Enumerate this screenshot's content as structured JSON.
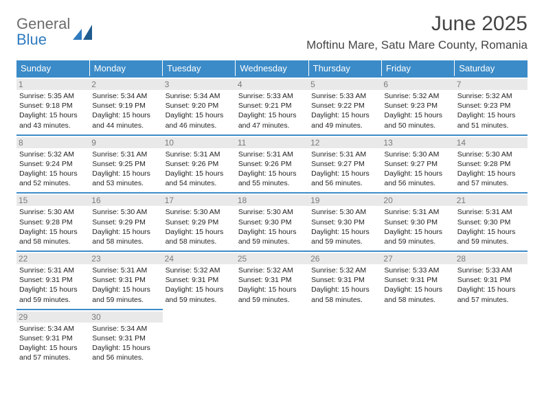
{
  "logo": {
    "line1": "General",
    "line2": "Blue"
  },
  "title": "June 2025",
  "location": "Moftinu Mare, Satu Mare County, Romania",
  "colors": {
    "header_bg": "#3b8bc8",
    "header_text": "#ffffff",
    "daynum_bg": "#e9e9e9",
    "daynum_text": "#7a7a7a",
    "body_text": "#222222",
    "divider": "#3b8bc8"
  },
  "dow": [
    "Sunday",
    "Monday",
    "Tuesday",
    "Wednesday",
    "Thursday",
    "Friday",
    "Saturday"
  ],
  "weeks": [
    [
      {
        "n": "1",
        "sr": "5:35 AM",
        "ss": "9:18 PM",
        "dl": "15 hours and 43 minutes."
      },
      {
        "n": "2",
        "sr": "5:34 AM",
        "ss": "9:19 PM",
        "dl": "15 hours and 44 minutes."
      },
      {
        "n": "3",
        "sr": "5:34 AM",
        "ss": "9:20 PM",
        "dl": "15 hours and 46 minutes."
      },
      {
        "n": "4",
        "sr": "5:33 AM",
        "ss": "9:21 PM",
        "dl": "15 hours and 47 minutes."
      },
      {
        "n": "5",
        "sr": "5:33 AM",
        "ss": "9:22 PM",
        "dl": "15 hours and 49 minutes."
      },
      {
        "n": "6",
        "sr": "5:32 AM",
        "ss": "9:23 PM",
        "dl": "15 hours and 50 minutes."
      },
      {
        "n": "7",
        "sr": "5:32 AM",
        "ss": "9:23 PM",
        "dl": "15 hours and 51 minutes."
      }
    ],
    [
      {
        "n": "8",
        "sr": "5:32 AM",
        "ss": "9:24 PM",
        "dl": "15 hours and 52 minutes."
      },
      {
        "n": "9",
        "sr": "5:31 AM",
        "ss": "9:25 PM",
        "dl": "15 hours and 53 minutes."
      },
      {
        "n": "10",
        "sr": "5:31 AM",
        "ss": "9:26 PM",
        "dl": "15 hours and 54 minutes."
      },
      {
        "n": "11",
        "sr": "5:31 AM",
        "ss": "9:26 PM",
        "dl": "15 hours and 55 minutes."
      },
      {
        "n": "12",
        "sr": "5:31 AM",
        "ss": "9:27 PM",
        "dl": "15 hours and 56 minutes."
      },
      {
        "n": "13",
        "sr": "5:30 AM",
        "ss": "9:27 PM",
        "dl": "15 hours and 56 minutes."
      },
      {
        "n": "14",
        "sr": "5:30 AM",
        "ss": "9:28 PM",
        "dl": "15 hours and 57 minutes."
      }
    ],
    [
      {
        "n": "15",
        "sr": "5:30 AM",
        "ss": "9:28 PM",
        "dl": "15 hours and 58 minutes."
      },
      {
        "n": "16",
        "sr": "5:30 AM",
        "ss": "9:29 PM",
        "dl": "15 hours and 58 minutes."
      },
      {
        "n": "17",
        "sr": "5:30 AM",
        "ss": "9:29 PM",
        "dl": "15 hours and 58 minutes."
      },
      {
        "n": "18",
        "sr": "5:30 AM",
        "ss": "9:30 PM",
        "dl": "15 hours and 59 minutes."
      },
      {
        "n": "19",
        "sr": "5:30 AM",
        "ss": "9:30 PM",
        "dl": "15 hours and 59 minutes."
      },
      {
        "n": "20",
        "sr": "5:31 AM",
        "ss": "9:30 PM",
        "dl": "15 hours and 59 minutes."
      },
      {
        "n": "21",
        "sr": "5:31 AM",
        "ss": "9:30 PM",
        "dl": "15 hours and 59 minutes."
      }
    ],
    [
      {
        "n": "22",
        "sr": "5:31 AM",
        "ss": "9:31 PM",
        "dl": "15 hours and 59 minutes."
      },
      {
        "n": "23",
        "sr": "5:31 AM",
        "ss": "9:31 PM",
        "dl": "15 hours and 59 minutes."
      },
      {
        "n": "24",
        "sr": "5:32 AM",
        "ss": "9:31 PM",
        "dl": "15 hours and 59 minutes."
      },
      {
        "n": "25",
        "sr": "5:32 AM",
        "ss": "9:31 PM",
        "dl": "15 hours and 59 minutes."
      },
      {
        "n": "26",
        "sr": "5:32 AM",
        "ss": "9:31 PM",
        "dl": "15 hours and 58 minutes."
      },
      {
        "n": "27",
        "sr": "5:33 AM",
        "ss": "9:31 PM",
        "dl": "15 hours and 58 minutes."
      },
      {
        "n": "28",
        "sr": "5:33 AM",
        "ss": "9:31 PM",
        "dl": "15 hours and 57 minutes."
      }
    ],
    [
      {
        "n": "29",
        "sr": "5:34 AM",
        "ss": "9:31 PM",
        "dl": "15 hours and 57 minutes."
      },
      {
        "n": "30",
        "sr": "5:34 AM",
        "ss": "9:31 PM",
        "dl": "15 hours and 56 minutes."
      },
      null,
      null,
      null,
      null,
      null
    ]
  ],
  "labels": {
    "sunrise": "Sunrise:",
    "sunset": "Sunset:",
    "daylight": "Daylight:"
  }
}
